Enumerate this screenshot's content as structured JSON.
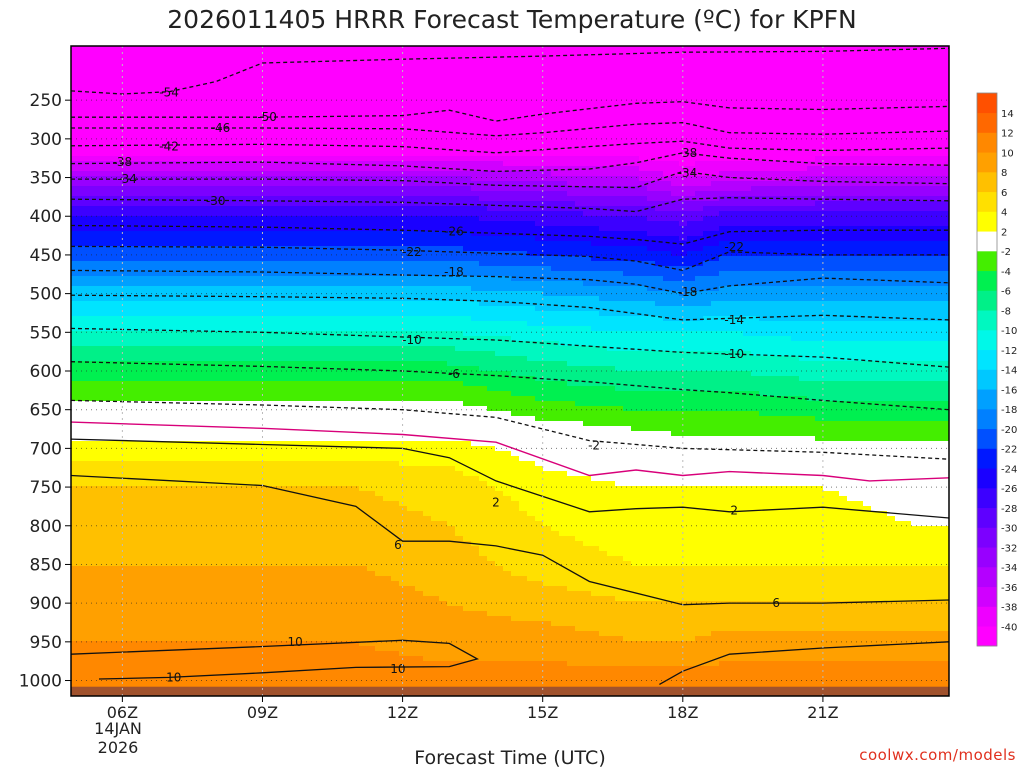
{
  "page": {
    "title": "2026011405 HRRR Forecast Temperature (ºC) for KPFN",
    "x_axis_label": "Forecast Time (UTC)",
    "credit": "coolwx.com/models"
  },
  "chart_data": {
    "type": "heatmap",
    "title": "2026011405 HRRR Forecast Temperature (ºC) for KPFN",
    "xlabel": "Forecast Time (UTC)",
    "ylabel": "",
    "x_range_hours": [
      4.9,
      23.7
    ],
    "x_ticks": [
      {
        "hour": 6,
        "label": "06Z"
      },
      {
        "hour": 9,
        "label": "09Z"
      },
      {
        "hour": 12,
        "label": "12Z"
      },
      {
        "hour": 15,
        "label": "15Z"
      },
      {
        "hour": 18,
        "label": "18Z"
      },
      {
        "hour": 21,
        "label": "21Z"
      }
    ],
    "date_label": [
      "14JAN",
      "2026"
    ],
    "pressure_ticks": [
      250,
      300,
      350,
      400,
      450,
      500,
      550,
      600,
      650,
      700,
      750,
      800,
      850,
      900,
      950,
      1000
    ],
    "pressure_range_hpa": [
      180,
      1020
    ],
    "surface_pressure_hpa": 1008,
    "colorbar": {
      "levels": [
        -40,
        -38,
        -36,
        -34,
        -32,
        -30,
        -28,
        -26,
        -24,
        -22,
        -20,
        -18,
        -16,
        -14,
        -12,
        -10,
        -8,
        -6,
        -4,
        -2,
        2,
        4,
        6,
        8,
        10,
        12,
        14
      ],
      "colors": [
        "#ff00ff",
        "#ee00ff",
        "#d000ff",
        "#b400ff",
        "#9800ff",
        "#7c00ff",
        "#5e00ff",
        "#3c00ff",
        "#1a00ff",
        "#0018ff",
        "#0050ff",
        "#0080ff",
        "#00a0ff",
        "#00c8ff",
        "#00e4ff",
        "#00f8e8",
        "#00f8c0",
        "#00f088",
        "#00f050",
        "#44ee00",
        "#ffffff",
        "#ffff00",
        "#ffe000",
        "#ffc000",
        "#ffa000",
        "#ff8800",
        "#ff6800",
        "#ff5000"
      ]
    },
    "temperature_field": {
      "pressure_levels_hpa": [
        180,
        250,
        300,
        350,
        400,
        450,
        500,
        550,
        600,
        650,
        700,
        750,
        800,
        850,
        900,
        950,
        1000
      ],
      "forecast_hours": [
        5,
        7,
        9,
        11,
        13,
        15,
        17,
        18,
        19,
        21,
        23
      ],
      "values": [
        [
          -58,
          -58,
          -58,
          -58,
          -58,
          -58,
          -58,
          -58,
          -58,
          -58,
          -58
        ],
        [
          -52,
          -52,
          -52,
          -52,
          -52,
          -52,
          -52,
          -52,
          -52,
          -52,
          -52
        ],
        [
          -44,
          -44,
          -44,
          -44,
          -44,
          -44,
          -44,
          -44,
          -44,
          -44,
          -44
        ],
        [
          -34,
          -34,
          -34,
          -34,
          -34,
          -35,
          -36,
          -38,
          -37,
          -36,
          -36
        ],
        [
          -26,
          -26,
          -26,
          -26,
          -26,
          -27,
          -28,
          -29,
          -27,
          -27,
          -27
        ],
        [
          -21,
          -21,
          -21,
          -21,
          -21,
          -22,
          -23,
          -24,
          -22,
          -22,
          -22
        ],
        [
          -15,
          -15,
          -15,
          -15,
          -15,
          -16,
          -17,
          -18,
          -17,
          -17,
          -17
        ],
        [
          -10,
          -10,
          -10,
          -10,
          -10,
          -11,
          -12,
          -12,
          -12,
          -13,
          -13
        ],
        [
          -5,
          -5,
          -5,
          -5,
          -5,
          -7,
          -8,
          -8,
          -8,
          -9,
          -9
        ],
        [
          -1,
          -1,
          -1,
          -1,
          -1,
          -3,
          -4,
          -4,
          -4,
          -5,
          -5
        ],
        [
          3,
          3,
          3,
          3,
          3,
          1,
          0,
          -1,
          -1,
          -1,
          -1
        ],
        [
          6,
          6,
          6,
          6,
          5,
          3,
          2,
          2,
          2,
          2,
          1
        ],
        [
          7,
          7,
          7,
          7,
          6,
          4,
          3,
          3,
          3,
          3,
          2
        ],
        [
          8,
          8,
          8,
          8,
          7,
          5,
          4,
          4,
          4,
          4,
          4
        ],
        [
          9,
          9,
          9,
          9,
          8,
          7,
          6,
          6,
          6,
          6,
          6
        ],
        [
          10,
          10,
          10,
          10,
          9,
          9,
          8,
          8,
          9,
          9,
          9
        ],
        [
          11,
          11,
          11,
          11,
          11,
          11,
          11,
          11,
          11,
          11,
          11
        ]
      ]
    },
    "contours": [
      {
        "label": "-54",
        "label_hour": 7.0,
        "label_p": 240,
        "points": [
          [
            4.9,
            238
          ],
          [
            6,
            242
          ],
          [
            7,
            239
          ],
          [
            8,
            226
          ],
          [
            9,
            202
          ],
          [
            12,
            197
          ],
          [
            15,
            193
          ],
          [
            18,
            188
          ],
          [
            21,
            187
          ],
          [
            23.7,
            183
          ]
        ]
      },
      {
        "label": "-50",
        "label_hour": 9.1,
        "label_p": 272,
        "points": [
          [
            4.9,
            272
          ],
          [
            9,
            272
          ],
          [
            12,
            270
          ],
          [
            13,
            263
          ],
          [
            14,
            277
          ],
          [
            15,
            268
          ],
          [
            17,
            254
          ],
          [
            18,
            252
          ],
          [
            19,
            260
          ],
          [
            21,
            262
          ],
          [
            23.7,
            258
          ]
        ]
      },
      {
        "label": "-46",
        "label_hour": 8.1,
        "label_p": 286,
        "points": [
          [
            4.9,
            286
          ],
          [
            9,
            286
          ],
          [
            12,
            287
          ],
          [
            14,
            296
          ],
          [
            15,
            292
          ],
          [
            17,
            281
          ],
          [
            18,
            279
          ],
          [
            19,
            292
          ],
          [
            21,
            294
          ],
          [
            23.7,
            290
          ]
        ]
      },
      {
        "label": "-42",
        "label_hour": 7.0,
        "label_p": 310,
        "points": [
          [
            4.9,
            309
          ],
          [
            9,
            307
          ],
          [
            12,
            310
          ],
          [
            14,
            318
          ],
          [
            15,
            314
          ],
          [
            17,
            306
          ],
          [
            18,
            303
          ],
          [
            19,
            312
          ],
          [
            21,
            315
          ],
          [
            23.7,
            312
          ]
        ]
      },
      {
        "label": "-38",
        "label_hour": 6.0,
        "label_p": 330,
        "points": [
          [
            4.9,
            332
          ],
          [
            9,
            330
          ],
          [
            12,
            335
          ],
          [
            14,
            342
          ],
          [
            16,
            339
          ],
          [
            17,
            331
          ],
          [
            18,
            318
          ],
          [
            19,
            325
          ],
          [
            21,
            332
          ],
          [
            23.7,
            334
          ]
        ]
      },
      {
        "label": "-38",
        "label_hour": 18.1,
        "label_p": 318,
        "points": []
      },
      {
        "label": "-34",
        "label_hour": 6.1,
        "label_p": 352,
        "points": [
          [
            4.9,
            352
          ],
          [
            9,
            352
          ],
          [
            12,
            354
          ],
          [
            14,
            360
          ],
          [
            16,
            362
          ],
          [
            17,
            363
          ],
          [
            18,
            342
          ],
          [
            19,
            350
          ],
          [
            21,
            355
          ],
          [
            23.7,
            358
          ]
        ]
      },
      {
        "label": "-34",
        "label_hour": 18.1,
        "label_p": 344,
        "points": []
      },
      {
        "label": "-30",
        "label_hour": 8.0,
        "label_p": 380,
        "points": [
          [
            4.9,
            378
          ],
          [
            9,
            380
          ],
          [
            12,
            382
          ],
          [
            14,
            386
          ],
          [
            16,
            390
          ],
          [
            17,
            394
          ],
          [
            18,
            378
          ],
          [
            19,
            376
          ],
          [
            21,
            378
          ],
          [
            23.7,
            380
          ]
        ]
      },
      {
        "label": "-26",
        "label_hour": 13.1,
        "label_p": 420,
        "points": [
          [
            4.9,
            412
          ],
          [
            9,
            414
          ],
          [
            12,
            418
          ],
          [
            14,
            422
          ],
          [
            16,
            426
          ],
          [
            17,
            430
          ],
          [
            18,
            436
          ],
          [
            19,
            420
          ],
          [
            21,
            418
          ],
          [
            23.7,
            418
          ]
        ]
      },
      {
        "label": "-22",
        "label_hour": 12.2,
        "label_p": 446,
        "points": [
          [
            4.9,
            439
          ],
          [
            9,
            440
          ],
          [
            12,
            444
          ],
          [
            14,
            448
          ],
          [
            16,
            452
          ],
          [
            17,
            458
          ],
          [
            18,
            470
          ],
          [
            19,
            446
          ],
          [
            21,
            450
          ],
          [
            23.7,
            450
          ]
        ]
      },
      {
        "label": "-22",
        "label_hour": 19.1,
        "label_p": 440,
        "points": []
      },
      {
        "label": "-18",
        "label_hour": 13.1,
        "label_p": 472,
        "points": [
          [
            4.9,
            470
          ],
          [
            9,
            472
          ],
          [
            12,
            476
          ],
          [
            14,
            478
          ],
          [
            16,
            482
          ],
          [
            17,
            488
          ],
          [
            18,
            500
          ],
          [
            19,
            490
          ],
          [
            21,
            480
          ],
          [
            23.7,
            486
          ]
        ]
      },
      {
        "label": "-18",
        "label_hour": 18.1,
        "label_p": 498,
        "points": []
      },
      {
        "label": "-14",
        "label_hour": 19.1,
        "label_p": 534,
        "points": [
          [
            4.9,
            502
          ],
          [
            9,
            504
          ],
          [
            12,
            506
          ],
          [
            14,
            510
          ],
          [
            16,
            518
          ],
          [
            17,
            526
          ],
          [
            18,
            534
          ],
          [
            19,
            532
          ],
          [
            21,
            528
          ],
          [
            23.7,
            534
          ]
        ]
      },
      {
        "label": "-10",
        "label_hour": 12.2,
        "label_p": 560,
        "points": [
          [
            4.9,
            545
          ],
          [
            9,
            550
          ],
          [
            12,
            556
          ],
          [
            14,
            560
          ],
          [
            16,
            568
          ],
          [
            18,
            576
          ],
          [
            19,
            578
          ],
          [
            21,
            582
          ],
          [
            23.7,
            595
          ]
        ]
      },
      {
        "label": "-10",
        "label_hour": 19.1,
        "label_p": 578,
        "points": []
      },
      {
        "label": "-6",
        "label_hour": 13.1,
        "label_p": 604,
        "points": [
          [
            4.9,
            588
          ],
          [
            9,
            594
          ],
          [
            12,
            600
          ],
          [
            14,
            606
          ],
          [
            16,
            614
          ],
          [
            18,
            624
          ],
          [
            19,
            628
          ],
          [
            21,
            638
          ],
          [
            23.7,
            650
          ]
        ]
      },
      {
        "label": "-2",
        "label_hour": 16.1,
        "label_p": 696,
        "points": [
          [
            4.9,
            638
          ],
          [
            9,
            644
          ],
          [
            12,
            650
          ],
          [
            14,
            660
          ],
          [
            16,
            690
          ],
          [
            18,
            700
          ],
          [
            21,
            705
          ],
          [
            23.7,
            714
          ]
        ]
      },
      {
        "label": "0",
        "label_hour": null,
        "label_p": null,
        "points": [
          [
            4.9,
            666
          ],
          [
            9,
            674
          ],
          [
            12,
            682
          ],
          [
            14,
            692
          ],
          [
            16,
            735
          ],
          [
            17,
            728
          ],
          [
            18,
            735
          ],
          [
            19,
            730
          ],
          [
            21,
            735
          ],
          [
            22,
            742
          ],
          [
            23.7,
            738
          ]
        ],
        "color": "#d8007a"
      },
      {
        "label": "2",
        "label_hour": 14.0,
        "label_p": 770,
        "points": [
          [
            4.9,
            688
          ],
          [
            9,
            695
          ],
          [
            12,
            700
          ],
          [
            13,
            712
          ],
          [
            14,
            742
          ],
          [
            15,
            762
          ],
          [
            16,
            782
          ],
          [
            17,
            778
          ],
          [
            18,
            776
          ],
          [
            19,
            782
          ],
          [
            21,
            776
          ],
          [
            23.7,
            790
          ]
        ]
      },
      {
        "label": "2",
        "label_hour": 19.1,
        "label_p": 780,
        "points": []
      },
      {
        "label": "6",
        "label_hour": 11.9,
        "label_p": 825,
        "points": [
          [
            4.9,
            735
          ],
          [
            9,
            748
          ],
          [
            11,
            775
          ],
          [
            12,
            820
          ],
          [
            13,
            820
          ],
          [
            14,
            826
          ],
          [
            15,
            838
          ],
          [
            16,
            872
          ],
          [
            18,
            902
          ],
          [
            19,
            900
          ],
          [
            21,
            900
          ],
          [
            23.7,
            896
          ]
        ]
      },
      {
        "label": "6",
        "label_hour": 20.0,
        "label_p": 900,
        "points": []
      },
      {
        "label": "10",
        "label_hour": 9.7,
        "label_p": 950,
        "points": [
          [
            4.9,
            966
          ],
          [
            9,
            956
          ],
          [
            12,
            948
          ],
          [
            13,
            952
          ],
          [
            13.6,
            972
          ],
          [
            13,
            982
          ],
          [
            11,
            983
          ],
          [
            9,
            990
          ],
          [
            7,
            996
          ],
          [
            5.5,
            998
          ]
        ]
      },
      {
        "label": "10",
        "label_hour": 11.9,
        "label_p": 985,
        "points": []
      },
      {
        "label": "10",
        "label_hour": 7.1,
        "label_p": 996,
        "points": []
      },
      {
        "label": "10",
        "label_hour": null,
        "label_p": null,
        "points": [
          [
            17.5,
            1005
          ],
          [
            18,
            988
          ],
          [
            19,
            966
          ],
          [
            21,
            958
          ],
          [
            23.7,
            950
          ]
        ]
      }
    ],
    "ground_color": "#a0522d"
  }
}
